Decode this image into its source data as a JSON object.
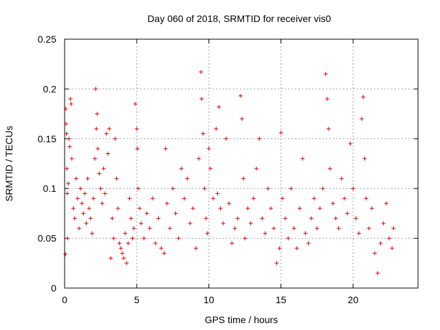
{
  "chart_data": {
    "type": "scatter",
    "title": "Day 060 of 2018, SRMTID for receiver vis0",
    "xlabel": "GPS time / hours",
    "ylabel": "SRMTID / TECUs",
    "xlim": [
      0,
      24.5
    ],
    "ylim": [
      0,
      0.25
    ],
    "xticks": [
      0,
      5,
      10,
      15,
      20
    ],
    "xtick_labels": [
      "0",
      "5",
      "10",
      "15",
      "20"
    ],
    "yticks": [
      0,
      0.05,
      0.1,
      0.15,
      0.2,
      0.25
    ],
    "ytick_labels": [
      "0",
      "0.05",
      "0.1",
      "0.15",
      "0.2",
      "0.25"
    ],
    "grid": true,
    "marker": "+",
    "color": "#e00000",
    "series": [
      {
        "name": "vis0",
        "points": [
          [
            0.05,
            0.034
          ],
          [
            0.08,
            0.18
          ],
          [
            0.1,
            0.165
          ],
          [
            0.12,
            0.155
          ],
          [
            0.15,
            0.12
          ],
          [
            0.18,
            0.095
          ],
          [
            0.2,
            0.05
          ],
          [
            0.25,
            0.105
          ],
          [
            0.3,
            0.15
          ],
          [
            0.35,
            0.142
          ],
          [
            0.4,
            0.19
          ],
          [
            0.45,
            0.185
          ],
          [
            0.5,
            0.13
          ],
          [
            0.6,
            0.08
          ],
          [
            0.7,
            0.07
          ],
          [
            0.8,
            0.11
          ],
          [
            0.9,
            0.09
          ],
          [
            1.0,
            0.06
          ],
          [
            1.1,
            0.1
          ],
          [
            1.2,
            0.085
          ],
          [
            1.3,
            0.075
          ],
          [
            1.4,
            0.095
          ],
          [
            1.5,
            0.065
          ],
          [
            1.6,
            0.11
          ],
          [
            1.7,
            0.08
          ],
          [
            1.8,
            0.07
          ],
          [
            1.9,
            0.055
          ],
          [
            2.0,
            0.09
          ],
          [
            2.1,
            0.13
          ],
          [
            2.15,
            0.2
          ],
          [
            2.2,
            0.16
          ],
          [
            2.25,
            0.175
          ],
          [
            2.3,
            0.14
          ],
          [
            2.4,
            0.115
          ],
          [
            2.5,
            0.1
          ],
          [
            2.6,
            0.085
          ],
          [
            2.7,
            0.12
          ],
          [
            2.8,
            0.095
          ],
          [
            2.9,
            0.155
          ],
          [
            3.0,
            0.135
          ],
          [
            3.1,
            0.16
          ],
          [
            3.2,
            0.03
          ],
          [
            3.3,
            0.07
          ],
          [
            3.4,
            0.05
          ],
          [
            3.5,
            0.15
          ],
          [
            3.6,
            0.11
          ],
          [
            3.7,
            0.08
          ],
          [
            3.8,
            0.045
          ],
          [
            3.9,
            0.04
          ],
          [
            4.0,
            0.035
          ],
          [
            4.1,
            0.03
          ],
          [
            4.2,
            0.055
          ],
          [
            4.3,
            0.025
          ],
          [
            4.4,
            0.045
          ],
          [
            4.5,
            0.09
          ],
          [
            4.6,
            0.07
          ],
          [
            4.7,
            0.05
          ],
          [
            4.8,
            0.06
          ],
          [
            4.9,
            0.185
          ],
          [
            5.0,
            0.16
          ],
          [
            5.05,
            0.14
          ],
          [
            5.1,
            0.1
          ],
          [
            5.2,
            0.08
          ],
          [
            5.3,
            0.065
          ],
          [
            5.5,
            0.05
          ],
          [
            5.7,
            0.075
          ],
          [
            5.9,
            0.06
          ],
          [
            6.1,
            0.09
          ],
          [
            6.3,
            0.045
          ],
          [
            6.5,
            0.07
          ],
          [
            6.7,
            0.04
          ],
          [
            6.9,
            0.035
          ],
          [
            7.0,
            0.14
          ],
          [
            7.1,
            0.085
          ],
          [
            7.3,
            0.06
          ],
          [
            7.5,
            0.1
          ],
          [
            7.7,
            0.075
          ],
          [
            7.9,
            0.05
          ],
          [
            8.1,
            0.12
          ],
          [
            8.3,
            0.09
          ],
          [
            8.5,
            0.11
          ],
          [
            8.7,
            0.065
          ],
          [
            8.9,
            0.08
          ],
          [
            9.1,
            0.04
          ],
          [
            9.3,
            0.13
          ],
          [
            9.45,
            0.217
          ],
          [
            9.5,
            0.19
          ],
          [
            9.6,
            0.155
          ],
          [
            9.7,
            0.1
          ],
          [
            9.8,
            0.07
          ],
          [
            9.9,
            0.055
          ],
          [
            10.0,
            0.14
          ],
          [
            10.1,
            0.12
          ],
          [
            10.3,
            0.09
          ],
          [
            10.5,
            0.16
          ],
          [
            10.6,
            0.095
          ],
          [
            10.7,
            0.182
          ],
          [
            10.8,
            0.08
          ],
          [
            11.0,
            0.065
          ],
          [
            11.2,
            0.15
          ],
          [
            11.4,
            0.085
          ],
          [
            11.6,
            0.045
          ],
          [
            11.8,
            0.06
          ],
          [
            12.0,
            0.07
          ],
          [
            12.2,
            0.193
          ],
          [
            12.3,
            0.17
          ],
          [
            12.4,
            0.11
          ],
          [
            12.5,
            0.05
          ],
          [
            12.7,
            0.08
          ],
          [
            12.9,
            0.065
          ],
          [
            13.1,
            0.09
          ],
          [
            13.3,
            0.12
          ],
          [
            13.5,
            0.15
          ],
          [
            13.7,
            0.07
          ],
          [
            13.9,
            0.055
          ],
          [
            14.1,
            0.1
          ],
          [
            14.3,
            0.08
          ],
          [
            14.5,
            0.06
          ],
          [
            14.7,
            0.025
          ],
          [
            14.9,
            0.04
          ],
          [
            15.0,
            0.156
          ],
          [
            15.1,
            0.09
          ],
          [
            15.3,
            0.07
          ],
          [
            15.5,
            0.05
          ],
          [
            15.7,
            0.1
          ],
          [
            15.9,
            0.06
          ],
          [
            16.1,
            0.04
          ],
          [
            16.3,
            0.08
          ],
          [
            16.5,
            0.13
          ],
          [
            16.7,
            0.055
          ],
          [
            16.9,
            0.045
          ],
          [
            17.1,
            0.07
          ],
          [
            17.3,
            0.09
          ],
          [
            17.5,
            0.06
          ],
          [
            17.7,
            0.08
          ],
          [
            17.9,
            0.1
          ],
          [
            18.1,
            0.215
          ],
          [
            18.2,
            0.19
          ],
          [
            18.3,
            0.16
          ],
          [
            18.4,
            0.12
          ],
          [
            18.6,
            0.085
          ],
          [
            18.8,
            0.07
          ],
          [
            19.0,
            0.06
          ],
          [
            19.2,
            0.11
          ],
          [
            19.4,
            0.09
          ],
          [
            19.6,
            0.075
          ],
          [
            19.8,
            0.145
          ],
          [
            20.0,
            0.1
          ],
          [
            20.2,
            0.07
          ],
          [
            20.4,
            0.055
          ],
          [
            20.6,
            0.17
          ],
          [
            20.7,
            0.192
          ],
          [
            20.8,
            0.13
          ],
          [
            20.9,
            0.09
          ],
          [
            21.1,
            0.06
          ],
          [
            21.3,
            0.08
          ],
          [
            21.5,
            0.035
          ],
          [
            21.7,
            0.015
          ],
          [
            21.9,
            0.045
          ],
          [
            22.1,
            0.065
          ],
          [
            22.3,
            0.085
          ],
          [
            22.5,
            0.05
          ],
          [
            22.7,
            0.04
          ],
          [
            22.8,
            0.06
          ]
        ]
      }
    ]
  }
}
